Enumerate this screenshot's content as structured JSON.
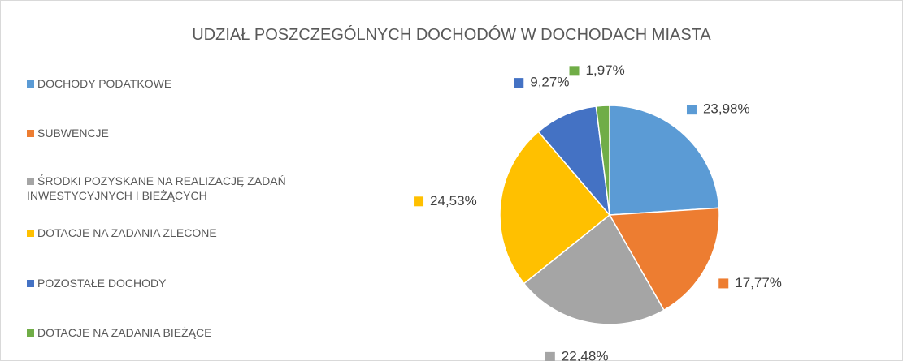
{
  "chart_data": {
    "type": "pie",
    "title": "UDZIAŁ POSZCZEGÓLNYCH DOCHODÓW W DOCHODACH MIASTA",
    "categories": [
      "DOCHODY PODATKOWE",
      "SUBWENCJE",
      "ŚRODKI POZYSKANE NA REALIZACJĘ ZADAŃ INWESTYCYJNYCH I BIEŻĄCYCH",
      "DOTACJE NA ZADANIA ZLECONE",
      "POZOSTAŁE DOCHODY",
      "DOTACJE NA ZADANIA BIEŻĄCE"
    ],
    "values": [
      23.98,
      17.77,
      22.48,
      24.53,
      9.27,
      1.97
    ],
    "value_labels": [
      "23,98%",
      "17,77%",
      "22,48%",
      "24,53%",
      "9,27%",
      "1,97%"
    ],
    "colors": [
      "#5b9bd5",
      "#ed7d31",
      "#a5a5a5",
      "#ffc000",
      "#4472c4",
      "#70ad47"
    ],
    "legend": "left"
  }
}
